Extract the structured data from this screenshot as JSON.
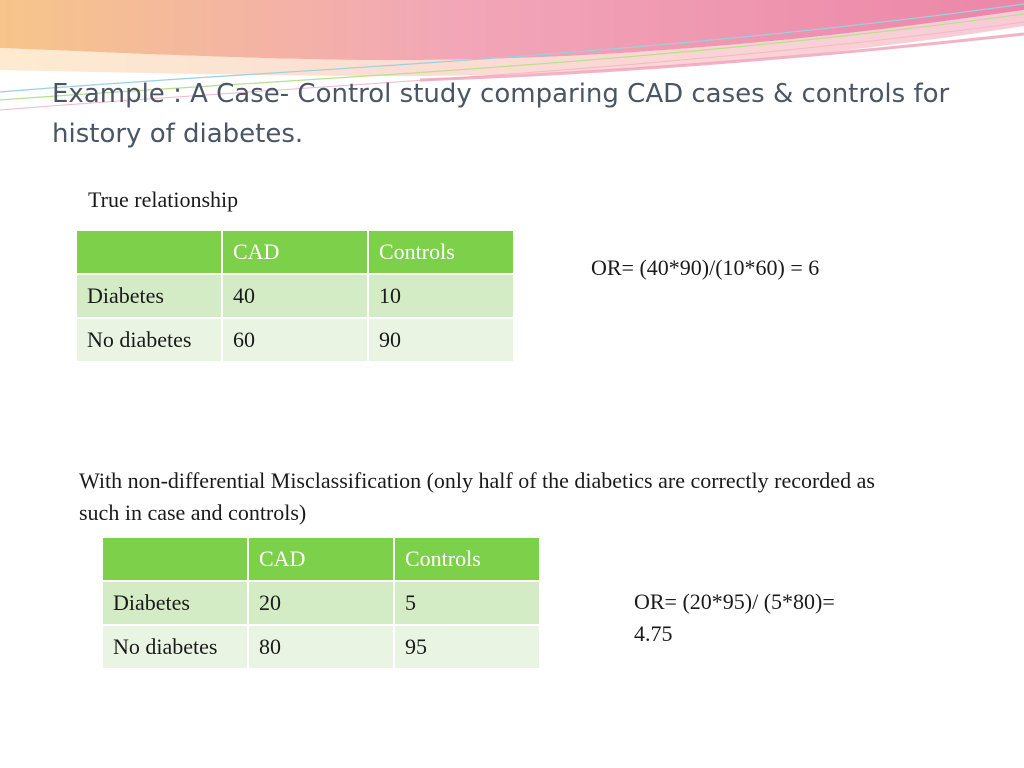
{
  "slide": {
    "title": "Example : A Case- Control study comparing CAD cases & controls for history of diabetes."
  },
  "section1": {
    "label": "True relationship",
    "table": {
      "headers": [
        "",
        "CAD",
        "Controls"
      ],
      "rows": [
        [
          "Diabetes",
          "40",
          "10"
        ],
        [
          "No diabetes",
          "60",
          "90"
        ]
      ]
    },
    "odds_ratio": "OR= (40*90)/(10*60) = 6"
  },
  "section2": {
    "label": "With non-differential Misclassification (only  half of the diabetics are correctly recorded as such in case and controls)",
    "table": {
      "headers": [
        "",
        "CAD",
        "Controls"
      ],
      "rows": [
        [
          "Diabetes",
          "20",
          "5"
        ],
        [
          "No diabetes",
          "80",
          "95"
        ]
      ]
    },
    "odds_ratio_line1": "OR= (20*95)/ (5*80)=",
    "odds_ratio_line2": "4.75"
  },
  "colors": {
    "header_fill": "#7dd14a",
    "row1_fill": "#d3ecc6",
    "row2_fill": "#e9f5e2",
    "title_color": "#4a5566"
  }
}
